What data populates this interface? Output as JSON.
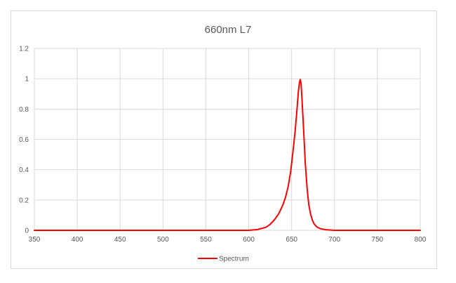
{
  "chart_data": {
    "type": "line",
    "title": "660nm L7",
    "xlabel": "",
    "ylabel": "",
    "xlim": [
      350,
      800
    ],
    "ylim": [
      0,
      1.2
    ],
    "x_ticks": [
      "350",
      "400",
      "450",
      "500",
      "550",
      "600",
      "650",
      "700",
      "750",
      "800"
    ],
    "y_ticks": [
      "0",
      "0.2",
      "0.4",
      "0.6",
      "0.8",
      "1",
      "1.2"
    ],
    "grid": true,
    "legend_position": "bottom",
    "colors": {
      "series": "#ff0000",
      "grid": "#d9d9d9"
    },
    "series": [
      {
        "name": "Spectrum",
        "x": [
          350,
          600,
          610,
          620,
          625,
          630,
          635,
          640,
          643,
          646,
          649,
          652,
          654,
          656,
          658,
          659,
          660,
          661,
          662,
          664,
          666,
          668,
          670,
          672,
          674,
          676,
          678,
          680,
          684,
          690,
          700,
          800
        ],
        "values": [
          0,
          0,
          0.005,
          0.02,
          0.04,
          0.07,
          0.11,
          0.17,
          0.22,
          0.29,
          0.39,
          0.54,
          0.65,
          0.78,
          0.92,
          0.97,
          0.995,
          0.97,
          0.88,
          0.66,
          0.44,
          0.28,
          0.17,
          0.11,
          0.07,
          0.045,
          0.03,
          0.02,
          0.01,
          0.004,
          0,
          0
        ]
      }
    ]
  }
}
